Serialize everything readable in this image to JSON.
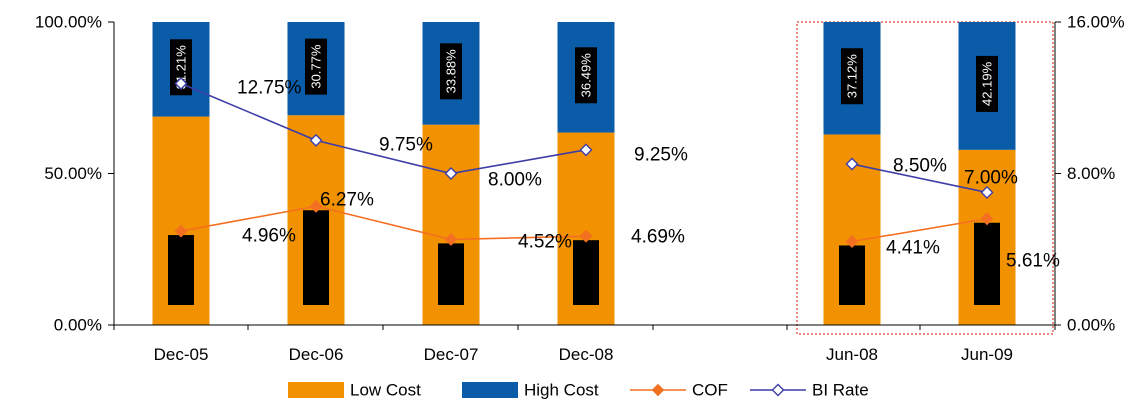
{
  "chart_data": {
    "type": "bar",
    "categories": [
      "Dec-05",
      "Dec-06",
      "Dec-07",
      "Dec-08",
      "",
      "Jun-08",
      "Jun-09"
    ],
    "series": [
      {
        "name": "Low Cost",
        "kind": "stacked-bar",
        "axis": "left",
        "color": "#F39200",
        "values": [
          68.79,
          69.23,
          66.12,
          63.51,
          null,
          62.88,
          57.81
        ]
      },
      {
        "name": "High Cost",
        "kind": "stacked-bar",
        "axis": "left",
        "color": "#0A5CA8",
        "values": [
          31.21,
          30.77,
          33.88,
          36.49,
          null,
          37.12,
          42.19
        ],
        "labels": [
          "31.21%",
          "30.77%",
          "33.88%",
          "36.49%",
          "",
          "37.12%",
          "42.19%"
        ]
      },
      {
        "name": "COF",
        "kind": "line",
        "axis": "right",
        "color": "#F37021",
        "marker": "diamond-filled",
        "values": [
          4.96,
          6.27,
          4.52,
          4.69,
          null,
          4.41,
          5.61
        ],
        "labels": [
          "4.96%",
          "6.27%",
          "4.52%",
          "4.69%",
          "",
          "4.41%",
          "5.61%"
        ]
      },
      {
        "name": "BI Rate",
        "kind": "line",
        "axis": "right",
        "color": "#3D3DA8",
        "marker": "diamond-open",
        "values": [
          12.75,
          9.75,
          8.0,
          9.25,
          null,
          8.5,
          7.0
        ],
        "labels": [
          "12.75%",
          "9.75%",
          "8.00%",
          "9.25%",
          "",
          "8.50%",
          "7.00%"
        ]
      }
    ],
    "y_left": {
      "ylim": [
        0,
        100
      ],
      "ticks": [
        "0.00%",
        "50.00%",
        "100.00%"
      ],
      "tick_values": [
        0,
        50,
        100
      ]
    },
    "y_right": {
      "ylim": [
        0,
        16
      ],
      "ticks": [
        "0.00%",
        "8.00%",
        "16.00%"
      ],
      "tick_values": [
        0,
        8,
        16
      ]
    },
    "legend": {
      "placement": "bottom",
      "items": [
        "Low Cost",
        "High Cost",
        "COF",
        "BI Rate"
      ]
    },
    "highlight": {
      "categories": [
        "Jun-08",
        "Jun-09"
      ],
      "style": "dotted red box"
    },
    "grid": false
  }
}
